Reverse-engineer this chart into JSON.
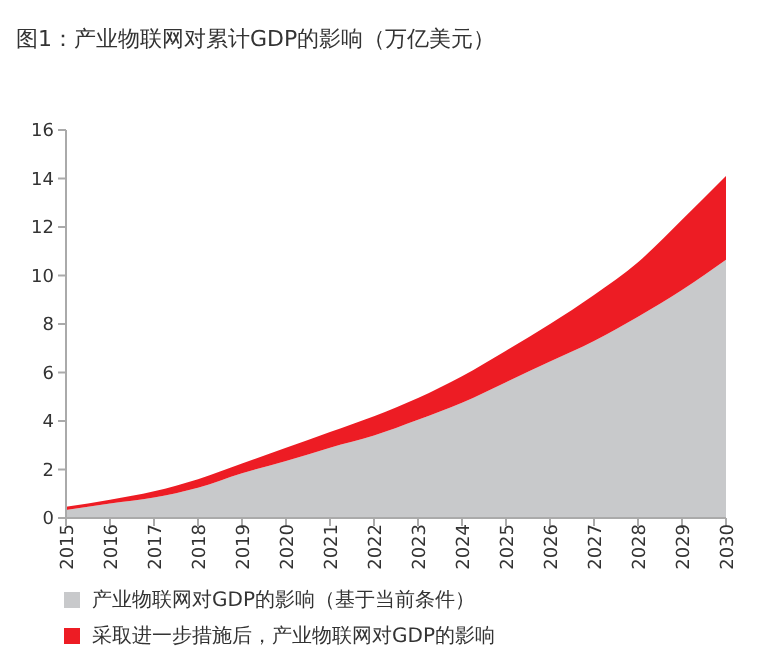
{
  "chart_data": {
    "type": "area",
    "title": "图1：产业物联网对累计GDP的影响（万亿美元）",
    "stacked": true,
    "categories": [
      "2015",
      "2016",
      "2017",
      "2018",
      "2019",
      "2020",
      "2021",
      "2022",
      "2023",
      "2024",
      "2025",
      "2026",
      "2027",
      "2028",
      "2029",
      "2030"
    ],
    "series": [
      {
        "name": "产业物联网对GDP的影响（基于当前条件）",
        "color": "#c8c9cb",
        "values": [
          0.33,
          0.6,
          0.85,
          1.25,
          1.85,
          2.35,
          2.9,
          3.4,
          4.05,
          4.75,
          5.6,
          6.45,
          7.3,
          8.3,
          9.4,
          10.65
        ]
      },
      {
        "name": "采取进一步措施后，产业物联网对GDP的影响",
        "color": "#ed1c24",
        "values": [
          0.13,
          0.15,
          0.25,
          0.35,
          0.4,
          0.55,
          0.65,
          0.8,
          0.9,
          1.1,
          1.3,
          1.55,
          1.9,
          2.25,
          2.9,
          3.45
        ]
      }
    ],
    "ylim": [
      0,
      16
    ],
    "yticks": [
      0,
      2,
      4,
      6,
      8,
      10,
      12,
      14,
      16
    ],
    "grid": false,
    "legend": "bottom"
  }
}
